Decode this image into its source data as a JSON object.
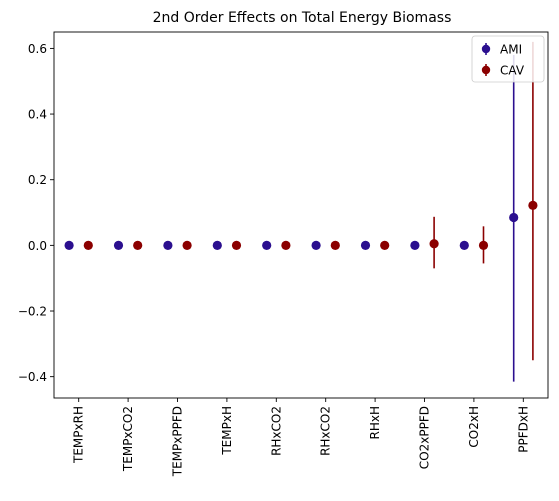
{
  "chart_data": {
    "type": "scatter",
    "title": "2nd Order Effects on Total Energy Biomass",
    "xlabel": "",
    "ylabel": "",
    "categories": [
      "TEMPxRH",
      "TEMPxCO2",
      "TEMPxPPFD",
      "TEMPxH",
      "RHxCO2",
      "RHxCO2",
      "RHxH",
      "CO2xPPFD",
      "CO2xH",
      "PPFDxH"
    ],
    "ylim": [
      -0.465,
      0.65
    ],
    "yticks": [
      -0.4,
      -0.2,
      0.0,
      0.2,
      0.4,
      0.6
    ],
    "ytick_labels": [
      "−0.4",
      "−0.2",
      "0.0",
      "0.2",
      "0.4",
      "0.6"
    ],
    "grid": false,
    "legend_position": "top-right",
    "series": [
      {
        "name": "AMI",
        "color": "#2b0f8f",
        "values": [
          0.0,
          0.0,
          0.0,
          0.0,
          0.0,
          0.0,
          0.0,
          0.0,
          0.0,
          0.085
        ],
        "error_low": [
          0.0,
          0.0,
          0.0,
          0.0,
          0.0,
          0.0,
          0.0,
          0.0,
          0.0,
          -0.415
        ],
        "error_high": [
          0.0,
          0.0,
          0.0,
          0.0,
          0.0,
          0.0,
          0.0,
          0.0,
          0.0,
          0.58
        ]
      },
      {
        "name": "CAV",
        "color": "#8b0000",
        "values": [
          0.0,
          0.0,
          0.0,
          0.0,
          0.0,
          0.0,
          0.0,
          0.005,
          0.0,
          0.122
        ],
        "error_low": [
          0.0,
          0.0,
          0.0,
          0.0,
          0.0,
          0.0,
          0.0,
          -0.07,
          -0.055,
          -0.35
        ],
        "error_high": [
          0.0,
          0.0,
          0.0,
          0.0,
          0.0,
          0.0,
          0.0,
          0.087,
          0.058,
          0.62
        ]
      }
    ]
  }
}
